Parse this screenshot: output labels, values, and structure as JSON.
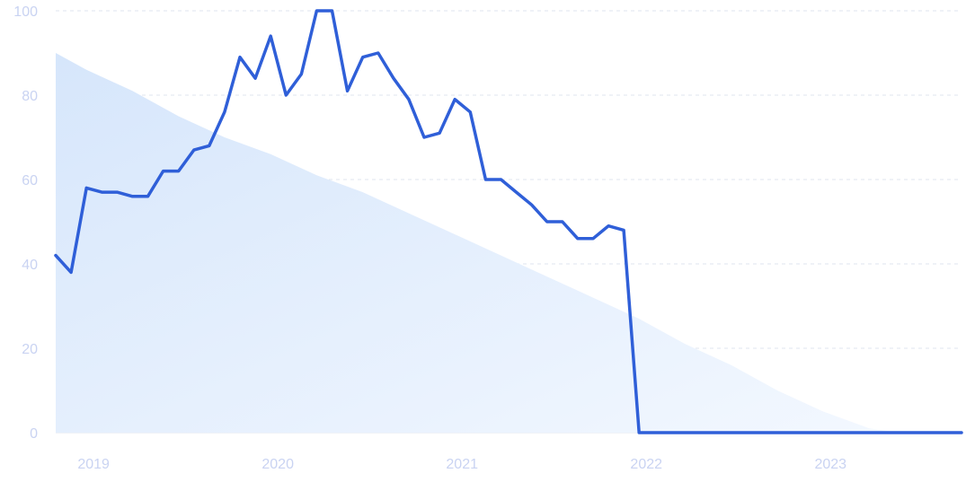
{
  "colors": {
    "line": "#2f5fd8",
    "area_top": "#d6e6fb",
    "area_bottom": "#f3f8ff",
    "grid": "#dfe5ef",
    "tick_text": "#c9d3f2"
  },
  "chart_data": {
    "type": "line",
    "title": "",
    "xlabel": "",
    "ylabel": "",
    "ylim": [
      0,
      100
    ],
    "xlim": [
      "2018-11",
      "2023-10"
    ],
    "grid": true,
    "legend": "none",
    "y_ticks": [
      0,
      20,
      40,
      60,
      80,
      100
    ],
    "y_tick_labels": [
      "0",
      "20",
      "40",
      "60",
      "80",
      "100"
    ],
    "x_ticks": [
      "2019-01",
      "2020-01",
      "2021-01",
      "2022-01",
      "2023-01"
    ],
    "x_tick_labels": [
      "2019",
      "2020",
      "2021",
      "2022",
      "2023"
    ],
    "series": [
      {
        "type": "line",
        "x": [
          "2018-11",
          "2018-12",
          "2019-01",
          "2019-02",
          "2019-03",
          "2019-04",
          "2019-05",
          "2019-06",
          "2019-07",
          "2019-08",
          "2019-09",
          "2019-10",
          "2019-11",
          "2019-12",
          "2020-01",
          "2020-02",
          "2020-03",
          "2020-04",
          "2020-05",
          "2020-06",
          "2020-07",
          "2020-08",
          "2020-09",
          "2020-10",
          "2020-11",
          "2020-12",
          "2021-01",
          "2021-02",
          "2021-03",
          "2021-04",
          "2021-05",
          "2021-06",
          "2021-07",
          "2021-08",
          "2021-09",
          "2021-10",
          "2021-11",
          "2021-12",
          "2022-01",
          "2022-02",
          "2022-03",
          "2022-04",
          "2022-05",
          "2022-06",
          "2022-07",
          "2022-08",
          "2022-09",
          "2022-10",
          "2022-11",
          "2022-12",
          "2023-01",
          "2023-02",
          "2023-03",
          "2023-04",
          "2023-05",
          "2023-06",
          "2023-07",
          "2023-08",
          "2023-09",
          "2023-10"
        ],
        "y": [
          42,
          38,
          58,
          57,
          57,
          56,
          56,
          62,
          62,
          67,
          68,
          76,
          89,
          84,
          94,
          80,
          85,
          100,
          100,
          81,
          89,
          90,
          84,
          79,
          70,
          71,
          79,
          76,
          60,
          60,
          57,
          54,
          50,
          50,
          46,
          46,
          49,
          48,
          0,
          0,
          0,
          0,
          0,
          0,
          0,
          0,
          0,
          0,
          0,
          0,
          0,
          0,
          0,
          0,
          0,
          0,
          0,
          0,
          0,
          0
        ]
      },
      {
        "type": "area",
        "x": [
          "2018-11",
          "2019-01",
          "2019-04",
          "2019-07",
          "2019-10",
          "2020-01",
          "2020-04",
          "2020-07",
          "2020-10",
          "2021-01",
          "2021-04",
          "2021-07",
          "2021-10",
          "2022-01",
          "2022-04",
          "2022-07",
          "2022-10",
          "2023-01",
          "2023-04",
          "2023-06"
        ],
        "y": [
          90,
          86,
          81,
          75,
          70,
          66,
          61,
          57,
          52,
          47,
          42,
          37,
          32,
          27,
          21,
          16,
          10,
          5,
          1,
          0
        ]
      }
    ]
  }
}
